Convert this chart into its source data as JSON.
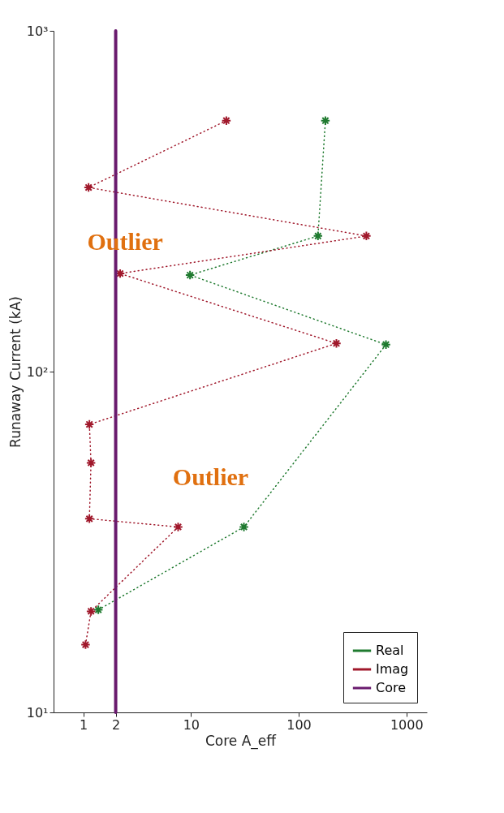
{
  "chart_data": {
    "type": "line",
    "xlabel": "Core A_eff",
    "ylabel": "Runaway Current (kA)",
    "log": "xy",
    "xlim": [
      0.53,
      1550
    ],
    "ylim": [
      10,
      1000
    ],
    "xticks": [
      1,
      2,
      10,
      100,
      1000
    ],
    "yticks": [
      {
        "value": 10,
        "label": "10¹"
      },
      {
        "value": 100,
        "label": "10²"
      },
      {
        "value": 1000,
        "label": "10³"
      }
    ],
    "grid": false,
    "legend": "bottom right",
    "series": [
      {
        "name": "Real",
        "color": "#1f7a2f",
        "marker": "cross",
        "line_style": "dotted",
        "x": [
          1.38,
          31,
          646,
          9.8,
          151,
          177
        ],
        "values": [
          20,
          35,
          120,
          192,
          250,
          545
        ]
      },
      {
        "name": "Imag",
        "color": "#a0182b",
        "marker": "cross",
        "line_style": "dotted",
        "x": [
          1.05,
          1.18,
          7.6,
          1.14,
          1.18,
          1.14,
          224,
          2.2,
          425,
          1.12,
          21.3
        ],
        "values": [
          15.8,
          19.8,
          35,
          37,
          54,
          70,
          121,
          194,
          250,
          347,
          545
        ]
      },
      {
        "name": "Core",
        "color": "#6a1b6e",
        "marker": "none",
        "line_style": "solid",
        "x": [
          2,
          2
        ],
        "values": [
          10,
          1000
        ]
      }
    ],
    "annotations": [
      {
        "text": "Outlier",
        "x": 1.12,
        "y": 347
      },
      {
        "text": "Outlier",
        "x": 7.6,
        "y": 35
      }
    ]
  }
}
